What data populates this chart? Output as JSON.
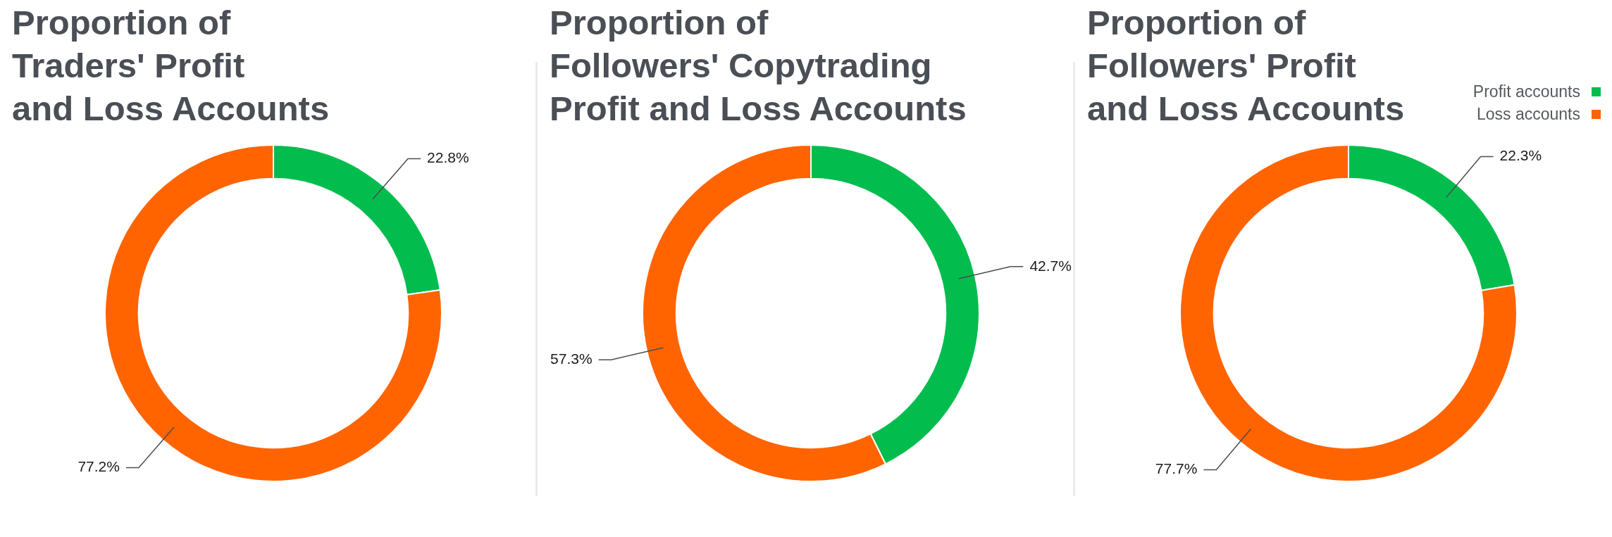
{
  "chart_data": [
    {
      "type": "donut",
      "title": "Proportion of\nTraders' Profit\nand Loss Accounts",
      "categories": [
        null,
        null
      ],
      "values": [
        22.8,
        77.2
      ],
      "colors": [
        "#02bd4e",
        "#ff6400"
      ],
      "value_labels": [
        "22.8%",
        "77.2%"
      ]
    },
    {
      "type": "donut",
      "title": "Proportion of\nFollowers' Copytrading\nProfit and Loss Accounts",
      "categories": [
        null,
        null
      ],
      "values": [
        42.7,
        57.3
      ],
      "colors": [
        "#02bd4e",
        "#ff6400"
      ],
      "value_labels": [
        "42.7%",
        "57.3%"
      ]
    },
    {
      "type": "donut",
      "title": "Proportion of\nFollowers' Profit\nand Loss Accounts",
      "categories": [
        "Profit accounts",
        "Loss accounts"
      ],
      "values": [
        22.3,
        77.7
      ],
      "colors": [
        "#02bd4e",
        "#ff6400"
      ],
      "value_labels": [
        "22.3%",
        "77.7%"
      ],
      "legend": "top right"
    }
  ]
}
